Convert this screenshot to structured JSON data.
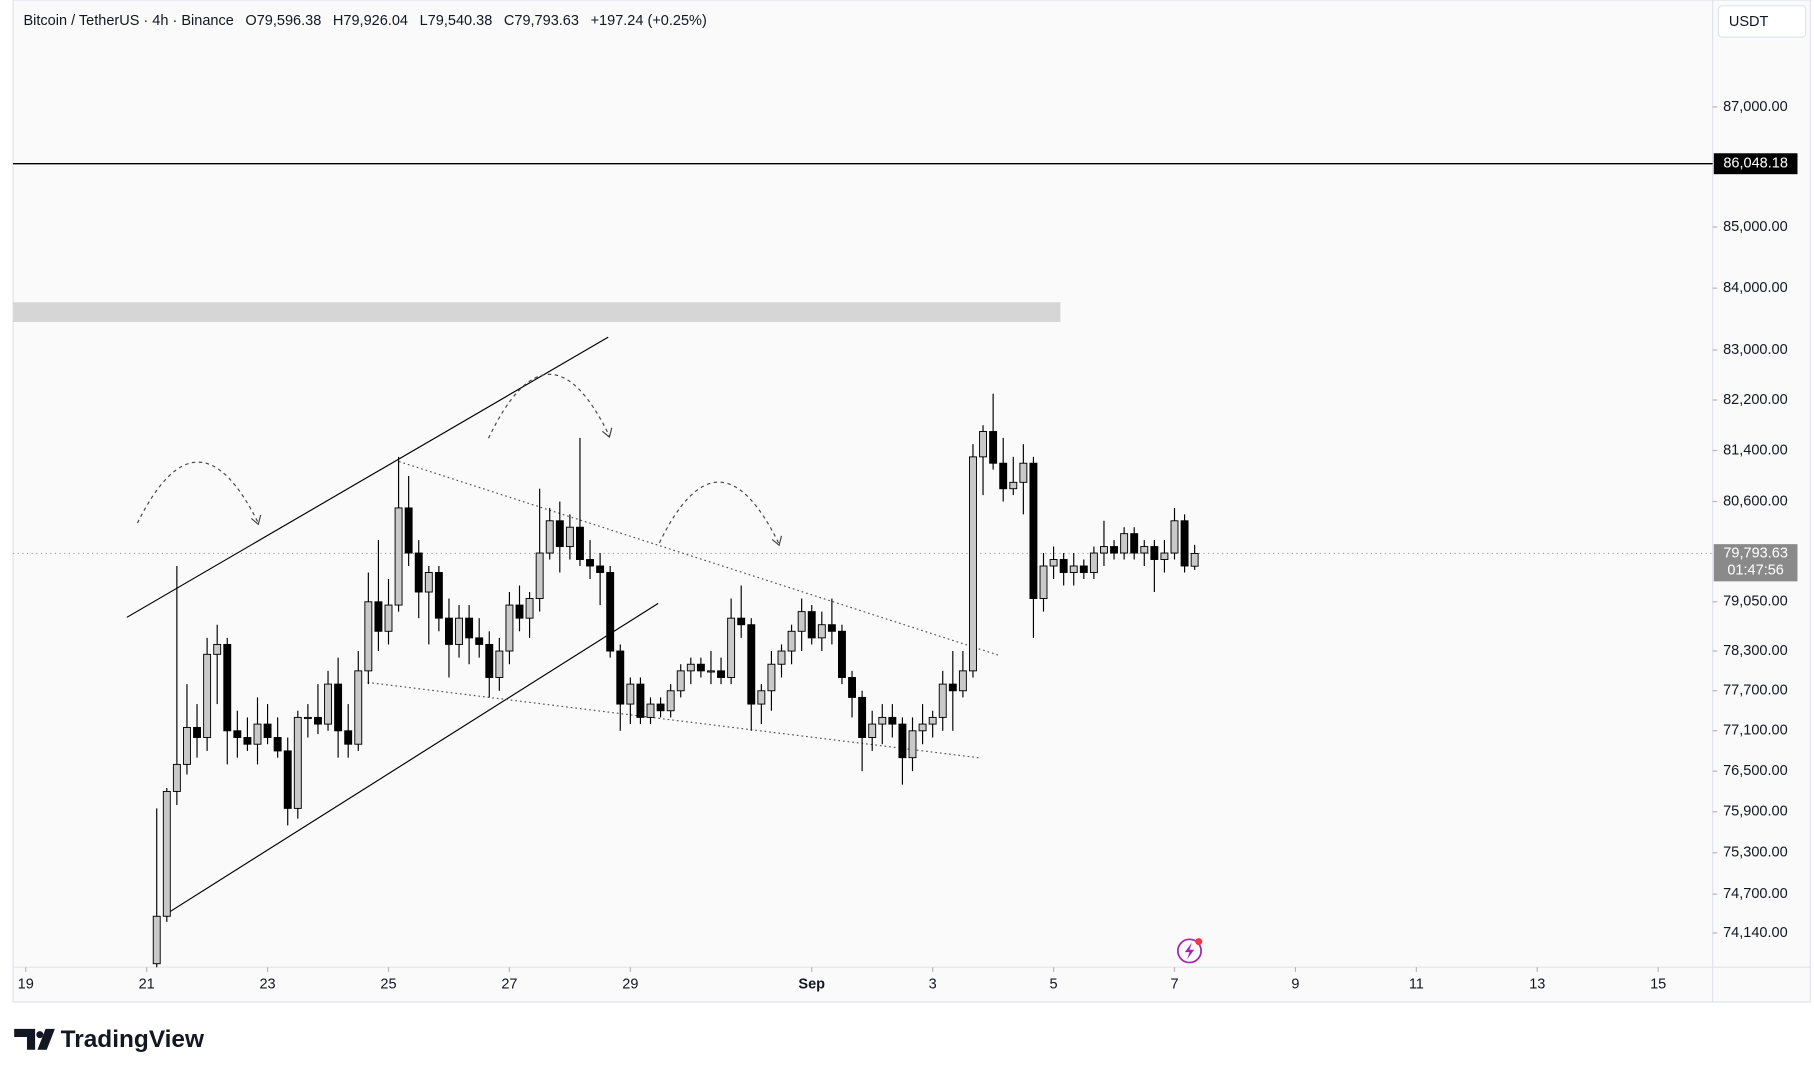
{
  "chart_data": {
    "type": "candlestick",
    "header": {
      "symbol": "Bitcoin / TetherUS · 4h · Binance",
      "open": "O79,596.38",
      "high": "H79,926.04",
      "low": "L79,540.38",
      "close": "C79,793.63",
      "change": "+197.24 (+0.25%)"
    },
    "currency": "USDT",
    "log_scale": true,
    "up_color": "#c9c9c9",
    "down_color": "#000000",
    "outline_color": "#000000",
    "level": {
      "value": 86048.18,
      "label": "86,048.18"
    },
    "last_price": {
      "value": 79793.63,
      "label": "79,793.63",
      "countdown": "01:47:56"
    },
    "xlim": [
      18.79,
      46.9
    ],
    "ylim": [
      73650,
      88820
    ],
    "xticks": [
      19,
      21,
      23,
      25,
      27,
      29,
      {
        "value": 32,
        "label": "Sep"
      },
      {
        "value": 34,
        "label": "3"
      },
      {
        "value": 36,
        "label": "5"
      },
      {
        "value": 38,
        "label": "7"
      },
      {
        "value": 40,
        "label": "9"
      },
      {
        "value": 42,
        "label": "11"
      },
      {
        "value": 44,
        "label": "13"
      },
      {
        "value": 46,
        "label": "15"
      }
    ],
    "yticks": [
      {
        "value": 74140,
        "label": "74,140.00"
      },
      {
        "value": 74700,
        "label": "74,700.00"
      },
      {
        "value": 75300,
        "label": "75,300.00"
      },
      {
        "value": 75900,
        "label": "75,900.00"
      },
      {
        "value": 76500,
        "label": "76,500.00"
      },
      {
        "value": 77100,
        "label": "77,100.00"
      },
      {
        "value": 77700,
        "label": "77,700.00"
      },
      {
        "value": 78300,
        "label": "78,300.00"
      },
      {
        "value": 79050,
        "label": "79,050.00"
      },
      {
        "value": 80600,
        "label": "80,600.00"
      },
      {
        "value": 81400,
        "label": "81,400.00"
      },
      {
        "value": 82200,
        "label": "82,200.00"
      },
      {
        "value": 83000,
        "label": "83,000.00"
      },
      {
        "value": 84000,
        "label": "84,000.00"
      },
      {
        "value": 85000,
        "label": "85,000.00"
      },
      {
        "value": 87000,
        "label": "87,000.00"
      }
    ],
    "x": [
      21.1667,
      21.3333,
      21.5,
      21.6667,
      21.8333,
      22,
      22.1667,
      22.3333,
      22.5,
      22.6667,
      22.8333,
      23,
      23.1667,
      23.3333,
      23.5,
      23.6667,
      23.8333,
      24,
      24.1667,
      24.3333,
      24.5,
      24.6667,
      24.8333,
      25,
      25.1667,
      25.3333,
      25.5,
      25.6667,
      25.8333,
      26,
      26.1667,
      26.3333,
      26.5,
      26.6667,
      26.8333,
      27,
      27.1667,
      27.3333,
      27.5,
      27.6667,
      27.8333,
      28,
      28.1667,
      28.3333,
      28.5,
      28.6667,
      28.8333,
      29,
      29.1667,
      29.3333,
      29.5,
      29.6667,
      29.8333,
      30,
      30.1667,
      30.3333,
      30.5,
      30.6667,
      30.8333,
      31,
      31.1667,
      31.3333,
      31.5,
      31.6667,
      31.8333,
      32,
      32.1667,
      32.3333,
      32.5,
      32.6667,
      32.8333,
      33,
      33.1667,
      33.3333,
      33.5,
      33.6667,
      33.8333,
      34,
      34.1667,
      34.3333,
      34.5,
      34.6667,
      34.8333,
      35,
      35.1667,
      35.3333,
      35.5,
      35.6667,
      35.8333,
      36,
      36.1667,
      36.3333,
      36.5,
      36.6667,
      36.8333,
      37,
      37.1667,
      37.3333,
      37.5,
      37.6667,
      37.8333,
      38,
      38.1667,
      38.3333
    ],
    "open": [
      73700,
      74380,
      76200,
      76600,
      77150,
      77000,
      78250,
      78400,
      77100,
      77000,
      76900,
      77200,
      77000,
      76800,
      75950,
      77300,
      77300,
      77200,
      77800,
      77100,
      76900,
      78000,
      79050,
      78600,
      79000,
      80500,
      79800,
      79200,
      79500,
      78800,
      78400,
      78800,
      78500,
      78400,
      77900,
      78300,
      79000,
      78800,
      79100,
      79800,
      80300,
      79900,
      80200,
      79700,
      79600,
      79500,
      78300,
      77500,
      77800,
      77300,
      77500,
      77400,
      77700,
      78000,
      78100,
      78000,
      78000,
      77900,
      78800,
      78700,
      77500,
      77700,
      78100,
      78300,
      78600,
      78900,
      78500,
      78700,
      78600,
      77900,
      77600,
      77000,
      77200,
      77300,
      77200,
      76700,
      77100,
      77200,
      77300,
      77800,
      77700,
      78000,
      81300,
      81700,
      81200,
      80800,
      80900,
      81200,
      79100,
      79600,
      79700,
      79500,
      79600,
      79500,
      79800,
      79900,
      79800,
      80100,
      79800,
      79900,
      79700,
      79800,
      80300,
      79596.38
    ],
    "high": [
      75950,
      76250,
      79600,
      77800,
      77500,
      78500,
      78700,
      78500,
      77400,
      77300,
      77600,
      77500,
      77300,
      77000,
      77400,
      77500,
      77800,
      78000,
      78200,
      77500,
      78300,
      79500,
      80000,
      79400,
      81300,
      81000,
      80000,
      79600,
      79600,
      79100,
      79000,
      79000,
      78800,
      78600,
      78500,
      79200,
      79300,
      79200,
      80800,
      80500,
      80600,
      80400,
      81600,
      80000,
      79800,
      79600,
      78400,
      77900,
      77900,
      77600,
      77600,
      77800,
      78100,
      78200,
      78200,
      78300,
      78200,
      79100,
      79300,
      78800,
      77800,
      78300,
      78400,
      78700,
      79100,
      79000,
      78900,
      79100,
      78700,
      78000,
      77700,
      77400,
      77500,
      77500,
      77300,
      77300,
      77500,
      77400,
      78000,
      78300,
      78300,
      81500,
      81800,
      82300,
      81600,
      81300,
      81500,
      81300,
      79800,
      79900,
      79800,
      79800,
      79700,
      79900,
      80300,
      80000,
      80200,
      80200,
      80000,
      80000,
      80000,
      80500,
      80400,
      79926.04
    ],
    "low": [
      73650,
      74300,
      76000,
      76450,
      76700,
      76800,
      77500,
      76600,
      76700,
      76800,
      76600,
      76900,
      76700,
      75700,
      75800,
      77000,
      77050,
      77100,
      76700,
      76700,
      76800,
      77800,
      78300,
      78400,
      78900,
      79600,
      78800,
      78400,
      78600,
      77900,
      78200,
      78100,
      78200,
      77600,
      77700,
      78100,
      78600,
      78500,
      78900,
      79700,
      79500,
      79700,
      79600,
      79400,
      79000,
      78200,
      77100,
      77200,
      77200,
      77200,
      77300,
      77300,
      77600,
      77800,
      77900,
      77800,
      77800,
      77800,
      78500,
      77100,
      77200,
      77400,
      77900,
      78100,
      78300,
      78400,
      78300,
      78400,
      77800,
      77300,
      76500,
      76800,
      76900,
      77000,
      76300,
      76500,
      76900,
      77000,
      77100,
      77100,
      77600,
      77900,
      80700,
      81100,
      80600,
      80700,
      80400,
      78500,
      78900,
      79400,
      79300,
      79300,
      79400,
      79400,
      79600,
      79700,
      79700,
      79700,
      79600,
      79200,
      79500,
      79700,
      79500,
      79540.38
    ],
    "close": [
      74380,
      76200,
      76600,
      77150,
      77000,
      78250,
      78400,
      77100,
      77000,
      76900,
      77200,
      77000,
      76800,
      75950,
      77300,
      77300,
      77200,
      77800,
      77100,
      76900,
      78000,
      79050,
      78600,
      79000,
      80500,
      79800,
      79200,
      79500,
      78800,
      78400,
      78800,
      78500,
      78400,
      77900,
      78300,
      79000,
      78800,
      79100,
      79800,
      80300,
      79900,
      80200,
      79700,
      79600,
      79500,
      78300,
      77500,
      77800,
      77300,
      77500,
      77400,
      77700,
      78000,
      78100,
      78000,
      78000,
      77900,
      78800,
      78700,
      77500,
      77700,
      78100,
      78300,
      78600,
      78900,
      78500,
      78700,
      78600,
      77900,
      77600,
      77000,
      77200,
      77300,
      77200,
      76700,
      77100,
      77200,
      77300,
      77800,
      77700,
      78000,
      81300,
      81700,
      81200,
      80800,
      80900,
      81200,
      79100,
      79600,
      79700,
      79500,
      79600,
      79500,
      79800,
      79900,
      79800,
      80100,
      79800,
      79900,
      79700,
      79800,
      80300,
      79600,
      79793.63
    ]
  },
  "branding": {
    "logo": "TradingView"
  }
}
